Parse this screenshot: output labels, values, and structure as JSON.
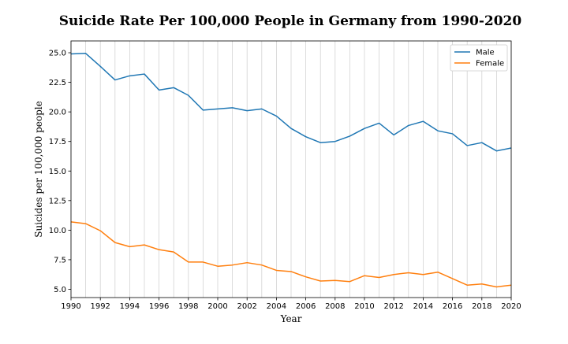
{
  "chart_data": {
    "type": "line",
    "title": "Suicide Rate Per 100,000 People in Germany from 1990-2020",
    "xlabel": "Year",
    "ylabel": "Suicides per 100,000 people",
    "xlim": [
      1990,
      2020
    ],
    "ylim": [
      4.3,
      26.0
    ],
    "grid": "vertical",
    "legend_position": "top-right",
    "x": [
      1990,
      1991,
      1992,
      1993,
      1994,
      1995,
      1996,
      1997,
      1998,
      1999,
      2000,
      2001,
      2002,
      2003,
      2004,
      2005,
      2006,
      2007,
      2008,
      2009,
      2010,
      2011,
      2012,
      2013,
      2014,
      2015,
      2016,
      2017,
      2018,
      2019,
      2020
    ],
    "x_ticks": [
      "1990",
      "1992",
      "1994",
      "1996",
      "1998",
      "2000",
      "2002",
      "2004",
      "2006",
      "2008",
      "2010",
      "2012",
      "2014",
      "2016",
      "2018",
      "2020"
    ],
    "y_ticks": [
      "5.0",
      "7.5",
      "10.0",
      "12.5",
      "15.0",
      "17.5",
      "20.0",
      "22.5",
      "25.0"
    ],
    "series": [
      {
        "name": "Male",
        "color": "#1f77b4",
        "values": [
          24.9,
          24.95,
          23.85,
          22.7,
          23.05,
          23.2,
          21.85,
          22.05,
          21.4,
          20.15,
          20.25,
          20.35,
          20.1,
          20.25,
          19.65,
          18.6,
          17.9,
          17.4,
          17.5,
          17.95,
          18.6,
          19.05,
          18.05,
          18.85,
          19.2,
          18.4,
          18.15,
          17.15,
          17.4,
          16.7,
          16.95
        ]
      },
      {
        "name": "Female",
        "color": "#ff7f0e",
        "values": [
          10.7,
          10.55,
          9.95,
          8.95,
          8.6,
          8.75,
          8.35,
          8.15,
          7.3,
          7.3,
          6.95,
          7.05,
          7.25,
          7.05,
          6.6,
          6.5,
          6.05,
          5.7,
          5.75,
          5.65,
          6.15,
          6.0,
          6.25,
          6.4,
          6.25,
          6.45,
          5.9,
          5.35,
          5.45,
          5.2,
          5.35
        ]
      }
    ]
  }
}
